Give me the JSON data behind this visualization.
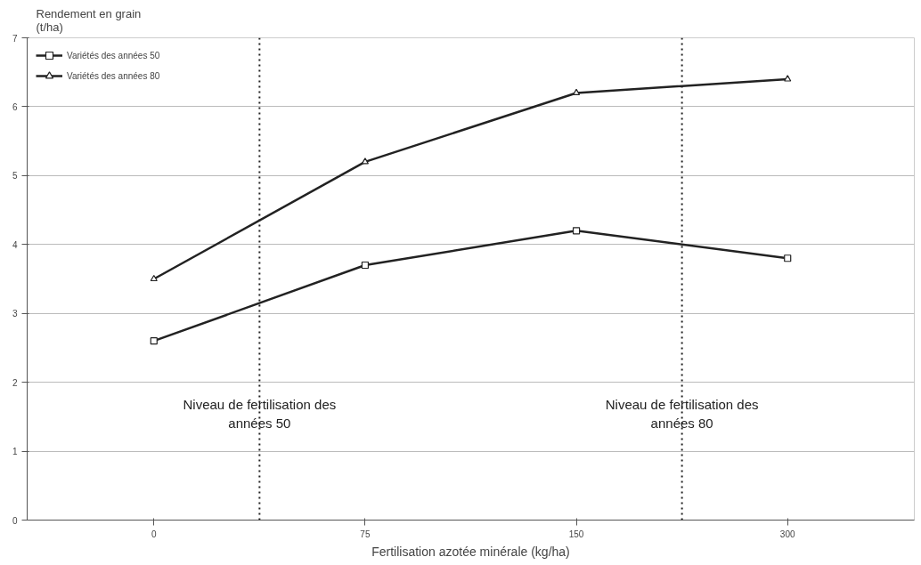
{
  "chart_data": {
    "type": "line",
    "ylabel": "Rendement en grain\n(t/ha)",
    "xlabel": "Fertilisation azotée minérale (kg/ha)",
    "categories": [
      "0",
      "75",
      "150",
      "300"
    ],
    "series": [
      {
        "name": "Variétés des années 50",
        "color": "#222222",
        "marker": "square",
        "values": [
          2.6,
          3.7,
          4.2,
          3.8
        ]
      },
      {
        "name": "Variétés des années 80",
        "color": "#222222",
        "marker": "triangle",
        "values": [
          3.5,
          5.2,
          6.2,
          6.4
        ]
      }
    ],
    "ylim": [
      0,
      7
    ],
    "yticks": [
      0,
      1,
      2,
      3,
      4,
      5,
      6,
      7
    ],
    "grid": "y",
    "legend": "top left",
    "line_style": "solid",
    "annotations": [
      "Niveau de fertilisation des\nannées 50",
      "Niveau de fertilisation des\nannées 80"
    ]
  }
}
